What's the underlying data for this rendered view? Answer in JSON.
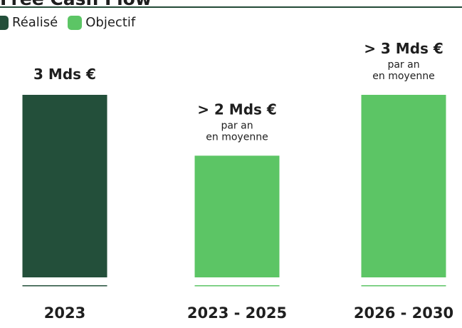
{
  "title": "Free Cash Flow",
  "legend": [
    {
      "label": "Réalisé",
      "color": "#234f3a"
    },
    {
      "label": "Objectif",
      "color": "#5cc565"
    }
  ],
  "chart_data": {
    "type": "bar",
    "title": "Free Cash Flow",
    "xlabel": "",
    "ylabel": "",
    "ylim": [
      0,
      3
    ],
    "grid": false,
    "legend_position": "top-left",
    "unit": "Mds €",
    "categories": [
      "2023",
      "2023 - 2025",
      "2026 - 2030"
    ],
    "values": [
      3,
      2,
      3
    ],
    "kinds": [
      "Réalisé",
      "Objectif",
      "Objectif"
    ],
    "colors": [
      "#234f3a",
      "#5cc565",
      "#5cc565"
    ],
    "value_labels": [
      "3 Mds €",
      "> 2 Mds €",
      "> 3 Mds €"
    ],
    "annotations": [
      [],
      [
        "par an",
        "en moyenne"
      ],
      [
        "par an",
        "en moyenne"
      ]
    ]
  }
}
